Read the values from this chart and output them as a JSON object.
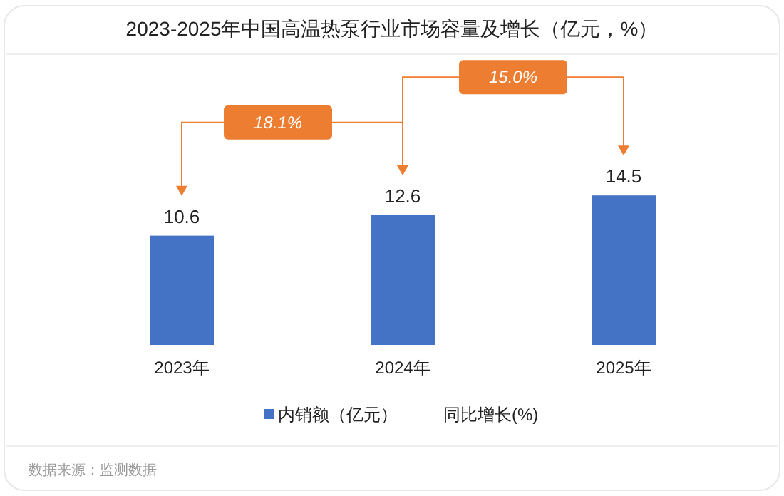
{
  "chart_data": {
    "type": "bar",
    "title": "2023-2025年中国高温热泵行业市场容量及增长（亿元，%）",
    "categories": [
      "2023年",
      "2024年",
      "2025年"
    ],
    "series": [
      {
        "name": "内销额（亿元）",
        "color": "#4472c4",
        "values": [
          10.6,
          12.6,
          14.5
        ]
      }
    ],
    "data_labels": true,
    "legend": "bottom",
    "annotations": [
      "18.1%",
      "15.0%",
      "同比增长(%)",
      "数据来源：监测数据"
    ]
  }
}
